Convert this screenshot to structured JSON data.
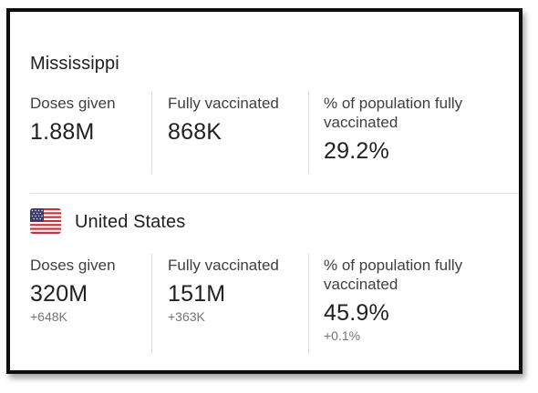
{
  "mississippi": {
    "title": "Mississippi",
    "stats": [
      {
        "label": "Doses given",
        "value": "1.88M"
      },
      {
        "label": "Fully vaccinated",
        "value": "868K"
      },
      {
        "label": "% of population fully vaccinated",
        "value": "29.2%"
      }
    ]
  },
  "united_states": {
    "title": "United States",
    "flag_icon": "us-flag-icon",
    "stats": [
      {
        "label": "Doses given",
        "value": "320M",
        "change": "+648K"
      },
      {
        "label": "Fully vaccinated",
        "value": "151M",
        "change": "+363K"
      },
      {
        "label": "% of population fully vaccinated",
        "value": "45.9%",
        "change": "+0.1%"
      }
    ]
  },
  "colors": {
    "text_primary": "#202124",
    "text_secondary": "#3c4043",
    "text_change": "#70757a",
    "divider": "#dadce0",
    "frame_border": "#0d0d0d"
  }
}
